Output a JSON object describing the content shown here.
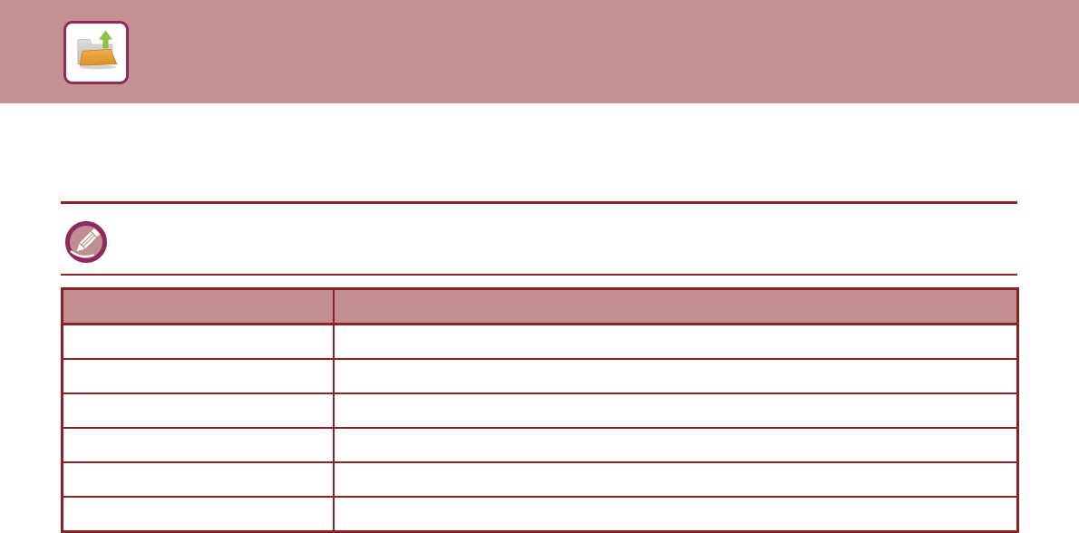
{
  "banner": {
    "icon": "folder-upload-icon"
  },
  "note": {
    "icon": "pencil-note-icon"
  },
  "colors": {
    "banner_bg": "#C49092",
    "table_header_bg": "#C28E8F",
    "rule_red": "#8C2126",
    "accent_magenta": "#8E2A5F",
    "icon_box_bg": "#FFFFFF",
    "folder_orange": "#E9A23B",
    "folder_gray": "#CBC8C6",
    "arrow_green": "#8CC63F",
    "pencil_circle_fill": "#BE8F8E"
  },
  "table": {
    "columns": [
      "",
      ""
    ],
    "rows": [
      [
        "",
        ""
      ],
      [
        "",
        ""
      ],
      [
        "",
        ""
      ],
      [
        "",
        ""
      ],
      [
        "",
        ""
      ],
      [
        "",
        ""
      ]
    ]
  }
}
